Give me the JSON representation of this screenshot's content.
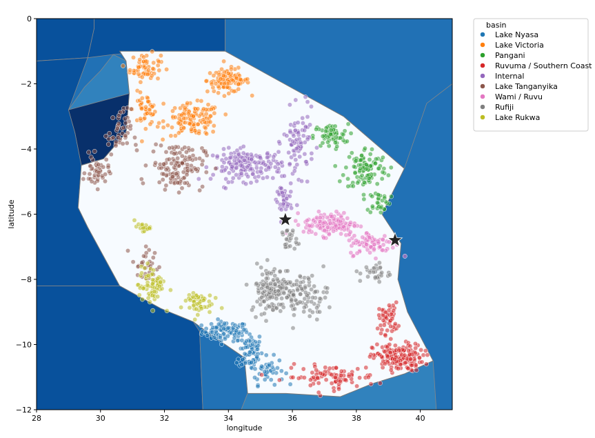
{
  "chart_data": {
    "type": "scatter",
    "title": "",
    "xlabel": "longitude",
    "ylabel": "latitude",
    "xlim": [
      28,
      41
    ],
    "ylim": [
      -12,
      0
    ],
    "xticks": [
      28,
      30,
      32,
      34,
      36,
      38,
      40
    ],
    "yticks": [
      0,
      -2,
      -4,
      -6,
      -8,
      -10,
      -12
    ],
    "grid": false,
    "legend": {
      "placement": "outside-top-right",
      "title": "basin"
    },
    "series": [
      {
        "name": "Lake Nyasa",
        "color": "#1f77b4",
        "clusters": [
          {
            "center": [
              33.9,
              -9.6
            ],
            "spread": [
              0.6,
              0.25
            ],
            "count": 90
          },
          {
            "center": [
              34.7,
              -10.2
            ],
            "spread": [
              0.3,
              0.5
            ],
            "count": 70
          },
          {
            "center": [
              35.2,
              -10.8
            ],
            "spread": [
              0.45,
              0.35
            ],
            "count": 45
          }
        ]
      },
      {
        "name": "Lake Victoria",
        "color": "#ff7f0e",
        "clusters": [
          {
            "center": [
              31.4,
              -1.5
            ],
            "spread": [
              0.4,
              0.35
            ],
            "count": 60
          },
          {
            "center": [
              34.0,
              -1.9
            ],
            "spread": [
              0.55,
              0.3
            ],
            "count": 110
          },
          {
            "center": [
              32.9,
              -3.1
            ],
            "spread": [
              0.7,
              0.4
            ],
            "count": 130
          },
          {
            "center": [
              31.4,
              -2.8
            ],
            "spread": [
              0.3,
              0.4
            ],
            "count": 45
          }
        ]
      },
      {
        "name": "Pangani",
        "color": "#2ca02c",
        "clusters": [
          {
            "center": [
              37.2,
              -3.6
            ],
            "spread": [
              0.45,
              0.3
            ],
            "count": 60
          },
          {
            "center": [
              38.3,
              -4.6
            ],
            "spread": [
              0.55,
              0.55
            ],
            "count": 100
          },
          {
            "center": [
              38.7,
              -5.6
            ],
            "spread": [
              0.3,
              0.3
            ],
            "count": 30
          }
        ]
      },
      {
        "name": "Ruvuma / Southern Coast",
        "color": "#d62728",
        "clusters": [
          {
            "center": [
              39.3,
              -10.4
            ],
            "spread": [
              0.65,
              0.35
            ],
            "count": 170
          },
          {
            "center": [
              39.0,
              -9.2
            ],
            "spread": [
              0.25,
              0.4
            ],
            "count": 50
          },
          {
            "center": [
              37.2,
              -11.0
            ],
            "spread": [
              1.2,
              0.3
            ],
            "count": 90
          }
        ]
      },
      {
        "name": "Internal",
        "color": "#9467bd",
        "clusters": [
          {
            "center": [
              34.6,
              -4.5
            ],
            "spread": [
              0.9,
              0.4
            ],
            "count": 170
          },
          {
            "center": [
              36.2,
              -3.8
            ],
            "spread": [
              0.4,
              0.8
            ],
            "count": 80
          },
          {
            "center": [
              35.7,
              -5.6
            ],
            "spread": [
              0.25,
              0.5
            ],
            "count": 40
          }
        ]
      },
      {
        "name": "Lake Tanganyika",
        "color": "#8c564b",
        "clusters": [
          {
            "center": [
              29.9,
              -4.7
            ],
            "spread": [
              0.3,
              0.4
            ],
            "count": 45
          },
          {
            "center": [
              32.4,
              -4.5
            ],
            "spread": [
              0.7,
              0.6
            ],
            "count": 130
          },
          {
            "center": [
              30.6,
              -3.5
            ],
            "spread": [
              0.3,
              0.6
            ],
            "count": 45
          },
          {
            "center": [
              31.4,
              -7.6
            ],
            "spread": [
              0.35,
              0.5
            ],
            "count": 30
          }
        ]
      },
      {
        "name": "Wami / Ruvu",
        "color": "#e377c2",
        "clusters": [
          {
            "center": [
              37.2,
              -6.3
            ],
            "spread": [
              0.7,
              0.3
            ],
            "count": 140
          },
          {
            "center": [
              38.5,
              -6.9
            ],
            "spread": [
              0.6,
              0.3
            ],
            "count": 80
          }
        ]
      },
      {
        "name": "Rufiji",
        "color": "#7f7f7f",
        "clusters": [
          {
            "center": [
              35.4,
              -8.3
            ],
            "spread": [
              0.6,
              0.6
            ],
            "count": 150
          },
          {
            "center": [
              36.4,
              -8.5
            ],
            "spread": [
              0.6,
              0.55
            ],
            "count": 80
          },
          {
            "center": [
              38.6,
              -7.8
            ],
            "spread": [
              0.4,
              0.25
            ],
            "count": 30
          },
          {
            "center": [
              35.9,
              -6.8
            ],
            "spread": [
              0.2,
              0.3
            ],
            "count": 25
          }
        ]
      },
      {
        "name": "Lake Rukwa",
        "color": "#bcbd22",
        "clusters": [
          {
            "center": [
              31.3,
              -6.4
            ],
            "spread": [
              0.2,
              0.1
            ],
            "count": 20
          },
          {
            "center": [
              31.6,
              -8.2
            ],
            "spread": [
              0.35,
              0.5
            ],
            "count": 70
          },
          {
            "center": [
              33.0,
              -8.7
            ],
            "spread": [
              0.4,
              0.3
            ],
            "count": 50
          }
        ]
      }
    ],
    "markers": [
      {
        "shape": "star",
        "lon": 35.78,
        "lat": -6.17,
        "color": "#222222"
      },
      {
        "shape": "star",
        "lon": 39.21,
        "lat": -6.8,
        "color": "#222222"
      }
    ],
    "background_map": {
      "land_color": "#f7fbff",
      "regions": [
        {
          "name": "lake-victoria-region",
          "color": "#08519c",
          "polygon": [
            [
              29.8,
              0
            ],
            [
              33.9,
              0
            ],
            [
              33.9,
              -1.0
            ],
            [
              31.5,
              -1.0
            ],
            [
              30.4,
              -1.1
            ],
            [
              29.6,
              -1.2
            ],
            [
              29.8,
              -0.3
            ]
          ]
        },
        {
          "name": "uganda-region",
          "color": "#08519c",
          "polygon": [
            [
              28.0,
              0
            ],
            [
              29.8,
              0
            ],
            [
              29.8,
              -0.3
            ],
            [
              29.6,
              -1.2
            ],
            [
              28.0,
              -1.3
            ]
          ]
        },
        {
          "name": "kenya-region",
          "color": "#2171b5",
          "polygon": [
            [
              33.9,
              0
            ],
            [
              41.0,
              0
            ],
            [
              41.0,
              -2.0
            ],
            [
              40.2,
              -2.6
            ],
            [
              39.5,
              -4.6
            ],
            [
              37.6,
              -3.0
            ],
            [
              37.7,
              -3.1
            ],
            [
              33.9,
              -1.0
            ]
          ]
        },
        {
          "name": "rwanda-region",
          "color": "#3182bd",
          "polygon": [
            [
              30.4,
              -1.1
            ],
            [
              30.8,
              -1.3
            ],
            [
              30.9,
              -2.3
            ],
            [
              29.0,
              -2.8
            ],
            [
              29.5,
              -2.1
            ],
            [
              30.0,
              -1.6
            ]
          ]
        },
        {
          "name": "burundi-region",
          "color": "#08306b",
          "polygon": [
            [
              29.0,
              -2.8
            ],
            [
              30.9,
              -2.3
            ],
            [
              30.8,
              -3.5
            ],
            [
              30.1,
              -4.3
            ],
            [
              29.4,
              -4.5
            ],
            [
              29.2,
              -3.5
            ]
          ]
        },
        {
          "name": "drc-region",
          "color": "#08519c",
          "polygon": [
            [
              28.0,
              -1.3
            ],
            [
              29.6,
              -1.2
            ],
            [
              29.0,
              -2.8
            ],
            [
              29.2,
              -3.5
            ],
            [
              29.4,
              -4.5
            ],
            [
              29.3,
              -5.8
            ],
            [
              29.6,
              -6.4
            ],
            [
              30.6,
              -8.2
            ],
            [
              28.0,
              -8.2
            ]
          ]
        },
        {
          "name": "zambia-region",
          "color": "#08519c",
          "polygon": [
            [
              28.0,
              -8.2
            ],
            [
              30.6,
              -8.2
            ],
            [
              31.9,
              -8.9
            ],
            [
              32.9,
              -9.3
            ],
            [
              33.1,
              -9.6
            ],
            [
              33.2,
              -12.0
            ],
            [
              28.0,
              -12.0
            ]
          ]
        },
        {
          "name": "malawi-region",
          "color": "#2171b5",
          "polygon": [
            [
              33.1,
              -9.6
            ],
            [
              33.6,
              -9.8
            ],
            [
              34.5,
              -10.4
            ],
            [
              34.6,
              -11.5
            ],
            [
              34.4,
              -12.0
            ],
            [
              33.2,
              -12.0
            ]
          ]
        },
        {
          "name": "mozambique-region",
          "color": "#3182bd",
          "polygon": [
            [
              34.6,
              -11.5
            ],
            [
              35.8,
              -11.5
            ],
            [
              37.5,
              -11.6
            ],
            [
              38.5,
              -11.2
            ],
            [
              39.5,
              -10.9
            ],
            [
              40.4,
              -10.5
            ],
            [
              40.5,
              -12.0
            ],
            [
              34.4,
              -12.0
            ]
          ]
        }
      ],
      "tanzania_outline": [
        [
          30.6,
          -1.0
        ],
        [
          33.9,
          -1.0
        ],
        [
          37.6,
          -3.0
        ],
        [
          39.5,
          -4.6
        ],
        [
          38.8,
          -6.0
        ],
        [
          39.4,
          -6.9
        ],
        [
          39.3,
          -8.0
        ],
        [
          39.6,
          -9.0
        ],
        [
          40.4,
          -10.5
        ],
        [
          39.5,
          -10.9
        ],
        [
          38.5,
          -11.2
        ],
        [
          37.5,
          -11.6
        ],
        [
          35.8,
          -11.5
        ],
        [
          34.6,
          -11.5
        ],
        [
          34.5,
          -10.4
        ],
        [
          33.6,
          -9.8
        ],
        [
          32.9,
          -9.3
        ],
        [
          31.9,
          -8.9
        ],
        [
          30.6,
          -8.2
        ],
        [
          29.6,
          -6.4
        ],
        [
          29.3,
          -5.8
        ],
        [
          29.4,
          -4.5
        ],
        [
          30.1,
          -4.3
        ],
        [
          30.8,
          -3.5
        ],
        [
          30.9,
          -2.3
        ],
        [
          30.8,
          -1.3
        ]
      ]
    }
  }
}
